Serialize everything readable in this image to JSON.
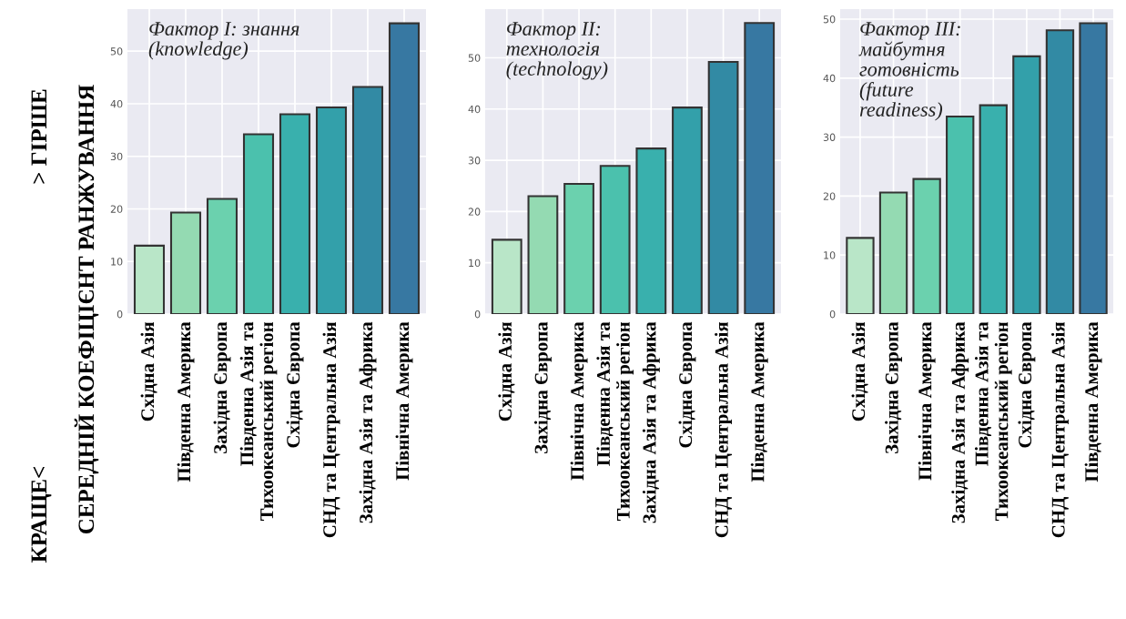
{
  "chart_data": [
    {
      "type": "bar",
      "title": "Фактор I: знання\n(knowledge)",
      "ylabel": "СЕРЕДНІЙ КОЕФІЦІЄНТ РАНЖУВАННЯ",
      "annotations": [
        "КРАЩЕ<",
        "> ГІРШЕ"
      ],
      "categories": [
        "Східна Азія",
        "Південна Америка",
        "Західна Європа",
        "Південна Азія та\nТихоокеанський регіон",
        "Східна Європа",
        "СНД та Центральна Азія",
        "Західна Азія та Африка",
        "Північна Америка"
      ],
      "values": [
        13.0,
        19.3,
        21.9,
        34.2,
        38.0,
        39.3,
        43.2,
        55.3
      ],
      "colors": [
        "#b9e6c8",
        "#94dab2",
        "#6bd1ae",
        "#4bc1ad",
        "#39b0ad",
        "#33a0aa",
        "#328aa4",
        "#3778a2"
      ],
      "ylim": [
        0,
        58
      ],
      "yticks": [
        0,
        10,
        20,
        30,
        40,
        50
      ],
      "grid": true
    },
    {
      "type": "bar",
      "title": "Фактор II:\nтехнологія\n(technology)",
      "categories": [
        "Східна Азія",
        "Західна Європа",
        "Північна Америка",
        "Південна Азія та\nТихоокеанський регіон",
        "Західна Азія та Африка",
        "Східна Європа",
        "СНД та Центральна Азія",
        "Південна Америка"
      ],
      "values": [
        14.5,
        23.0,
        25.4,
        28.9,
        32.3,
        40.3,
        49.2,
        56.8
      ],
      "colors": [
        "#b9e6c8",
        "#94dab2",
        "#6bd1ae",
        "#4bc1ad",
        "#39b0ad",
        "#33a0aa",
        "#328aa4",
        "#3778a2"
      ],
      "ylim": [
        0,
        59.5
      ],
      "yticks": [
        0,
        10,
        20,
        30,
        40,
        50
      ],
      "grid": true
    },
    {
      "type": "bar",
      "title": "Фактор III:\nмайбутня\nготовність\n(future\nreadiness)",
      "categories": [
        "Східна Азія",
        "Західна Європа",
        "Північна Америка",
        "Західна Азія та Африка",
        "Південна Азія та\nТихоокеанський регіон",
        "Східна Європа",
        "СНД та Центральна Азія",
        "Південна Америка"
      ],
      "values": [
        12.9,
        20.6,
        22.9,
        33.5,
        35.4,
        43.7,
        48.1,
        49.3
      ],
      "colors": [
        "#b9e6c8",
        "#94dab2",
        "#6bd1ae",
        "#4bc1ad",
        "#39b0ad",
        "#33a0aa",
        "#328aa4",
        "#3778a2"
      ],
      "ylim": [
        0,
        51.7
      ],
      "yticks": [
        0,
        10,
        20,
        30,
        40,
        50
      ],
      "grid": true
    }
  ]
}
